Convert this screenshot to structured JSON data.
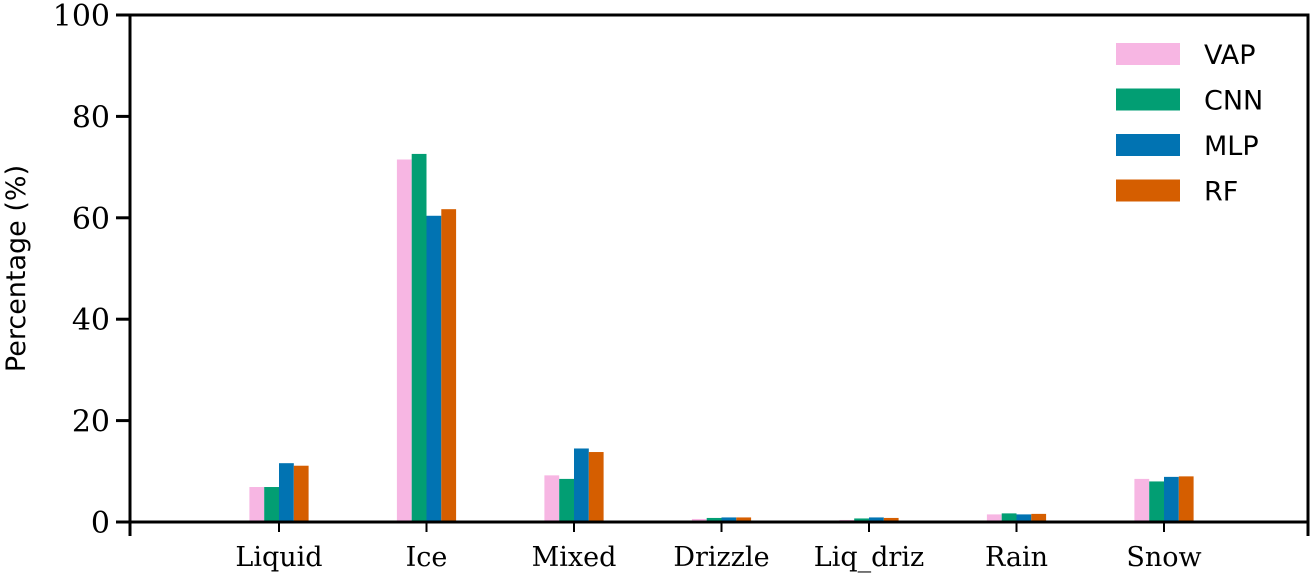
{
  "chart_data": {
    "type": "bar",
    "title": "",
    "xlabel": "",
    "ylabel": "Percentage (%)",
    "ylim": [
      0,
      100
    ],
    "yticks": [
      "0",
      "20",
      "40",
      "60",
      "80",
      "100"
    ],
    "categories": [
      "Liquid",
      "Ice",
      "Mixed",
      "Drizzle",
      "Liq_driz",
      "Rain",
      "Snow"
    ],
    "series": [
      {
        "name": "VAP",
        "color": "#f7b6e3",
        "values": [
          6.9,
          71.5,
          9.2,
          0.6,
          0.4,
          1.5,
          8.5
        ]
      },
      {
        "name": "CNN",
        "color": "#029e73",
        "values": [
          6.9,
          72.6,
          8.5,
          0.8,
          0.7,
          1.7,
          8.0
        ]
      },
      {
        "name": "MLP",
        "color": "#0173b2",
        "values": [
          11.6,
          60.4,
          14.5,
          0.9,
          0.9,
          1.5,
          8.9
        ]
      },
      {
        "name": "RF",
        "color": "#d55e00",
        "values": [
          11.1,
          61.7,
          13.8,
          0.9,
          0.8,
          1.6,
          9.0
        ]
      }
    ],
    "legend_position": "top-right",
    "grid": false
  }
}
